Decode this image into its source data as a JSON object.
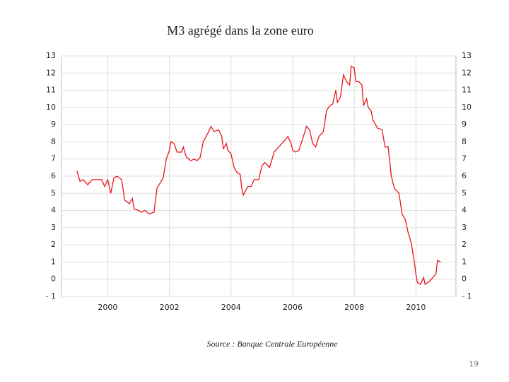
{
  "chart_data": {
    "type": "line",
    "title": "M3 agrégé dans la zone euro",
    "source": "Source : Banque Centrale Européenne",
    "page_number": "19",
    "x": [
      1999.0,
      1999.1,
      1999.2,
      1999.35,
      1999.5,
      1999.8,
      1999.9,
      2000.0,
      2000.1,
      2000.2,
      2000.3,
      2000.45,
      2000.55,
      2000.7,
      2000.8,
      2000.85,
      2001.0,
      2001.1,
      2001.2,
      2001.35,
      2001.5,
      2001.6,
      2001.7,
      2001.8,
      2001.9,
      2002.0,
      2002.05,
      2002.15,
      2002.25,
      2002.4,
      2002.45,
      2002.55,
      2002.7,
      2002.8,
      2002.9,
      2003.0,
      2003.1,
      2003.25,
      2003.35,
      2003.45,
      2003.6,
      2003.7,
      2003.75,
      2003.85,
      2003.9,
      2004.0,
      2004.1,
      2004.2,
      2004.3,
      2004.35,
      2004.4,
      2004.55,
      2004.65,
      2004.75,
      2004.9,
      2005.0,
      2005.1,
      2005.25,
      2005.4,
      2005.6,
      2005.75,
      2005.85,
      2005.95,
      2006.0,
      2006.1,
      2006.2,
      2006.35,
      2006.45,
      2006.55,
      2006.65,
      2006.75,
      2006.85,
      2006.95,
      2007.0,
      2007.1,
      2007.2,
      2007.3,
      2007.4,
      2007.45,
      2007.55,
      2007.65,
      2007.75,
      2007.85,
      2007.9,
      2008.0,
      2008.05,
      2008.15,
      2008.25,
      2008.3,
      2008.4,
      2008.45,
      2008.55,
      2008.6,
      2008.75,
      2008.9,
      2009.0,
      2009.1,
      2009.2,
      2009.3,
      2009.45,
      2009.55,
      2009.65,
      2009.75,
      2009.85,
      2009.95,
      2010.0,
      2010.05,
      2010.15,
      2010.25,
      2010.3,
      2010.45,
      2010.55,
      2010.65,
      2010.7,
      2010.8
    ],
    "series": [
      {
        "color": "#e8151b",
        "values": [
          6.3,
          5.7,
          5.8,
          5.5,
          5.8,
          5.8,
          5.4,
          5.8,
          5.0,
          5.9,
          6.0,
          5.8,
          4.6,
          4.4,
          4.7,
          4.1,
          4.0,
          3.9,
          4.0,
          3.8,
          3.9,
          5.3,
          5.6,
          5.9,
          7.0,
          7.5,
          8.0,
          7.9,
          7.4,
          7.4,
          7.7,
          7.1,
          6.9,
          7.0,
          6.9,
          7.1,
          8.0,
          8.5,
          8.9,
          8.6,
          8.7,
          8.3,
          7.6,
          7.9,
          7.5,
          7.3,
          6.5,
          6.2,
          6.1,
          5.3,
          4.9,
          5.4,
          5.4,
          5.8,
          5.8,
          6.6,
          6.8,
          6.5,
          7.4,
          7.8,
          8.1,
          8.3,
          7.9,
          7.5,
          7.4,
          7.5,
          8.3,
          8.9,
          8.7,
          7.9,
          7.7,
          8.3,
          8.5,
          8.6,
          9.8,
          10.1,
          10.2,
          11.0,
          10.3,
          10.6,
          11.9,
          11.5,
          11.3,
          12.4,
          12.3,
          11.5,
          11.5,
          11.3,
          10.1,
          10.5,
          10.0,
          9.8,
          9.3,
          8.8,
          8.7,
          7.7,
          7.7,
          6.0,
          5.3,
          5.0,
          3.8,
          3.5,
          2.7,
          2.1,
          1.0,
          0.3,
          -0.2,
          -0.3,
          0.1,
          -0.3,
          -0.1,
          0.1,
          0.3,
          1.1,
          1.0
        ]
      }
    ],
    "xlim": [
      1998.5,
      2011.3
    ],
    "xticks": [
      2000,
      2002,
      2004,
      2006,
      2008,
      2010
    ],
    "ylim": [
      -1,
      13
    ],
    "yticks": [
      {
        "value": -1,
        "label": "- 1"
      },
      0,
      1,
      2,
      3,
      4,
      5,
      6,
      7,
      8,
      9,
      10,
      11,
      12,
      13
    ],
    "grid": true
  }
}
